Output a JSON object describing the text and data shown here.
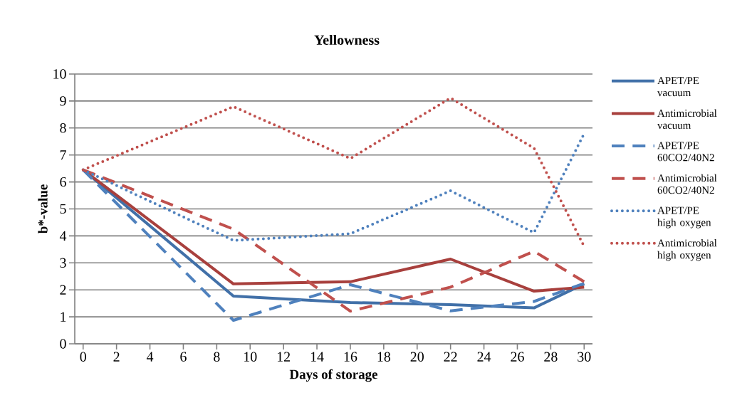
{
  "chart_data": {
    "type": "line",
    "title": "Yellowness",
    "xlabel": "Days of storage",
    "ylabel": "b*-value",
    "x": [
      0,
      9,
      16,
      22,
      27,
      30
    ],
    "xlim": [
      -0.5,
      30.5
    ],
    "xticks": [
      0,
      2,
      4,
      6,
      8,
      10,
      12,
      14,
      16,
      18,
      20,
      22,
      24,
      26,
      28,
      30
    ],
    "ylim": [
      0,
      10
    ],
    "yticks": [
      0,
      1,
      2,
      3,
      4,
      5,
      6,
      7,
      8,
      9,
      10
    ],
    "grid": "y",
    "legend": "right",
    "series": [
      {
        "name": "APET/PE vacuum",
        "color": "#4170a8",
        "line_style": "solid",
        "values": [
          6.45,
          1.77,
          1.53,
          1.45,
          1.33,
          2.22
        ]
      },
      {
        "name": "Antimicrobial vacuum",
        "color": "#a8403d",
        "line_style": "solid",
        "values": [
          6.45,
          2.22,
          2.3,
          3.14,
          1.95,
          2.1
        ]
      },
      {
        "name": "APET/PE 60CO2/40N2",
        "color": "#4f81bd",
        "line_style": "dashed",
        "values": [
          6.45,
          0.87,
          2.19,
          1.22,
          1.57,
          2.24
        ]
      },
      {
        "name": "Antimicrobial 60CO2/40N2",
        "color": "#c0504d",
        "line_style": "dashed",
        "values": [
          6.45,
          4.25,
          1.21,
          2.1,
          3.43,
          2.3
        ]
      },
      {
        "name": "APET/PE high oxygen",
        "color": "#4f81bd",
        "line_style": "dotted",
        "values": [
          6.45,
          3.83,
          4.08,
          5.67,
          4.12,
          7.79
        ]
      },
      {
        "name": "Antimicrobial high oxygen",
        "color": "#c0504d",
        "line_style": "dotted",
        "values": [
          6.45,
          8.79,
          6.87,
          9.11,
          7.25,
          3.61
        ]
      }
    ]
  }
}
